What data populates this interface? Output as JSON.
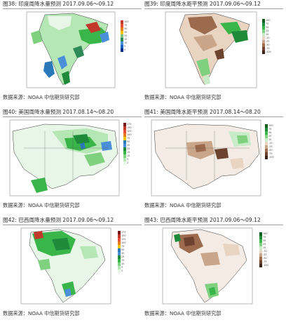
{
  "panels": [
    {
      "caption": "图38: 印度周降水量预测 2017.09.06～09.12",
      "source": "数据来源：NOAA 中信期货研究部",
      "legend": [
        "100",
        "75",
        "50",
        "35",
        "25",
        "15",
        "10",
        "5",
        "2"
      ],
      "legend_colors": [
        "#c0392b",
        "#e74c3c",
        "#e67e22",
        "#f1c40f",
        "#7fbf7f",
        "#2e8b57",
        "#4a90d9",
        "#1f5fbf",
        "#0b2f8a"
      ]
    },
    {
      "caption": "图39: 印度周降水距平预测 2017.09.06～09.12",
      "source": "数据来源：NOAA 中信期货研究部",
      "legend": [
        "100",
        "75",
        "50",
        "25",
        "10",
        "-10",
        "-25",
        "-50",
        "-75",
        "-100"
      ],
      "legend_colors": [
        "#0b5d1e",
        "#1e8a3a",
        "#39b54a",
        "#7fd17f",
        "#c7ecc7",
        "#e9d3c1",
        "#c9a58a",
        "#9c6b4e",
        "#6d4330",
        "#3e2418"
      ]
    },
    {
      "caption": "图40: 美国周降水量预测 2017.08.14～08.20",
      "source": "数据来源：NOAA 中信期货研究部",
      "legend": [
        "175",
        "150",
        "125",
        "100",
        "75",
        "50",
        "35",
        "25",
        "15",
        "10",
        "5",
        "2"
      ],
      "legend_colors": [
        "#7b1a1a",
        "#c0392b",
        "#e74c3c",
        "#e67e22",
        "#f1c40f",
        "#2a7ab9",
        "#4a90d9",
        "#1e8a3a",
        "#39b54a",
        "#7fd17f",
        "#b5e7b5",
        "#e8f6e8"
      ]
    },
    {
      "caption": "图41: 美国周降水距平预测 2017.08.14～08.20",
      "source": "数据来源：NOAA 中信期货研究部",
      "legend": [
        "100",
        "75",
        "50",
        "25",
        "10",
        "-10",
        "-25",
        "-50",
        "-75",
        "-100"
      ],
      "legend_colors": [
        "#0b5d1e",
        "#1e8a3a",
        "#39b54a",
        "#7fd17f",
        "#c7ecc7",
        "#e9d3c1",
        "#c9a58a",
        "#9c6b4e",
        "#6d4330",
        "#3e2418"
      ]
    },
    {
      "caption": "图42: 巴西周降水量预测 2017.09.06～09.12",
      "source": "数据来源：NOAA 中信期货研究部",
      "legend": [
        "175",
        "150",
        "125",
        "100",
        "75",
        "50",
        "35",
        "25",
        "15",
        "10",
        "5",
        "2"
      ],
      "legend_colors": [
        "#7b1a1a",
        "#c0392b",
        "#e74c3c",
        "#e67e22",
        "#f1c40f",
        "#2a7ab9",
        "#4a90d9",
        "#1e8a3a",
        "#39b54a",
        "#7fd17f",
        "#b5e7b5",
        "#e8f6e8"
      ]
    },
    {
      "caption": "图43: 巴西周降水距平预测 2017.09.06～09.12",
      "source": "数据来源：NOAA 中信期货研究部",
      "legend": [
        "100",
        "75",
        "50",
        "25",
        "10",
        "-10",
        "-25",
        "-50",
        "-75",
        "-100"
      ],
      "legend_colors": [
        "#0b5d1e",
        "#1e8a3a",
        "#39b54a",
        "#7fd17f",
        "#c7ecc7",
        "#e9d3c1",
        "#c9a58a",
        "#9c6b4e",
        "#6d4330",
        "#3e2418"
      ]
    }
  ]
}
